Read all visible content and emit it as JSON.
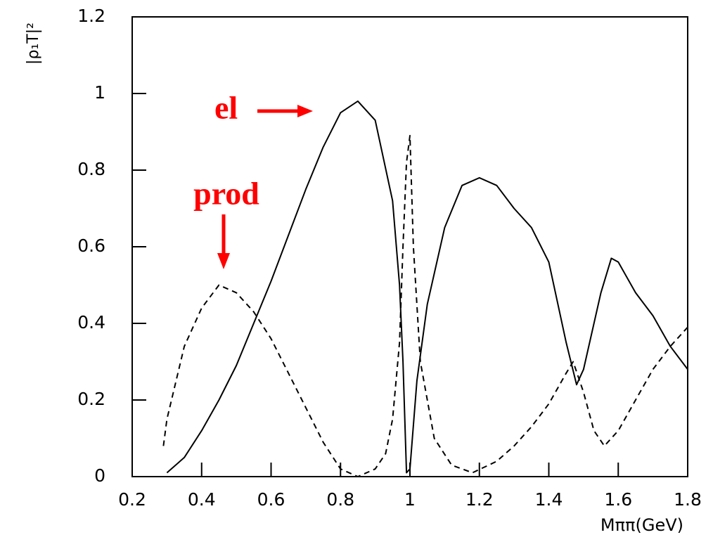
{
  "chart_data": {
    "type": "line",
    "x_label": "Mππ(GeV)",
    "y_label": "|ρ₁T|²",
    "xlim": [
      0.2,
      1.8
    ],
    "xticks": [
      0.2,
      0.4,
      0.6,
      0.8,
      1,
      1.2,
      1.4,
      1.6,
      1.8
    ],
    "ylim": [
      0,
      1.2
    ],
    "yticks": [
      0,
      0.2,
      0.4,
      0.6,
      0.8,
      1,
      1.2
    ],
    "grid": false,
    "annotations": [
      {
        "text": "el"
      },
      {
        "text": "prod"
      }
    ],
    "series": [
      {
        "color": "#000000",
        "line_style": "solid",
        "x": [
          0.3,
          0.35,
          0.4,
          0.45,
          0.5,
          0.55,
          0.6,
          0.65,
          0.7,
          0.75,
          0.8,
          0.85,
          0.9,
          0.95,
          0.97,
          0.98,
          0.99,
          1.0,
          1.02,
          1.05,
          1.1,
          1.15,
          1.2,
          1.25,
          1.3,
          1.35,
          1.4,
          1.45,
          1.48,
          1.5,
          1.55,
          1.58,
          1.6,
          1.65,
          1.7,
          1.75,
          1.8
        ],
        "values": [
          0.01,
          0.05,
          0.12,
          0.2,
          0.29,
          0.4,
          0.51,
          0.63,
          0.75,
          0.86,
          0.95,
          0.98,
          0.93,
          0.72,
          0.5,
          0.3,
          0.01,
          0.02,
          0.25,
          0.45,
          0.65,
          0.76,
          0.78,
          0.76,
          0.7,
          0.65,
          0.56,
          0.35,
          0.24,
          0.28,
          0.48,
          0.57,
          0.56,
          0.48,
          0.42,
          0.34,
          0.28
        ]
      },
      {
        "color": "#000000",
        "line_style": "dashed",
        "x": [
          0.29,
          0.3,
          0.35,
          0.4,
          0.45,
          0.5,
          0.55,
          0.6,
          0.65,
          0.7,
          0.75,
          0.8,
          0.85,
          0.9,
          0.93,
          0.95,
          0.97,
          0.98,
          0.99,
          1.0,
          1.01,
          1.03,
          1.07,
          1.12,
          1.18,
          1.25,
          1.3,
          1.35,
          1.4,
          1.45,
          1.47,
          1.5,
          1.53,
          1.56,
          1.6,
          1.65,
          1.7,
          1.75,
          1.8
        ],
        "values": [
          0.08,
          0.15,
          0.34,
          0.44,
          0.5,
          0.48,
          0.43,
          0.36,
          0.27,
          0.18,
          0.09,
          0.02,
          0.0,
          0.02,
          0.06,
          0.15,
          0.35,
          0.6,
          0.82,
          0.89,
          0.6,
          0.3,
          0.1,
          0.03,
          0.01,
          0.04,
          0.08,
          0.13,
          0.19,
          0.27,
          0.3,
          0.22,
          0.12,
          0.08,
          0.12,
          0.2,
          0.28,
          0.34,
          0.39
        ]
      }
    ]
  }
}
